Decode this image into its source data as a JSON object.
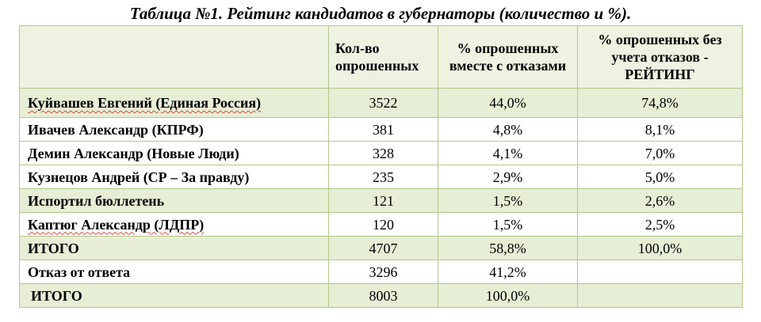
{
  "title": "Таблица №1. Рейтинг кандидатов в губернаторы (количество и %).",
  "headers": {
    "name": "",
    "count": "Кол-во опрошенных",
    "pct_with_refusals": "% опрошенных вместе с отказами",
    "pct_rating": "% опрошенных без учета отказов - РЕЙТИНГ"
  },
  "rows": [
    {
      "name": "Куйвашев Евгений (Единая Россия)",
      "count": "3522",
      "pct": "44,0%",
      "rating": "74,8%"
    },
    {
      "name": "Ивачев Александр (КПРФ)",
      "count": "381",
      "pct": "4,8%",
      "rating": "8,1%"
    },
    {
      "name": "Демин Александр (Новые Люди)",
      "count": "328",
      "pct": "4,1%",
      "rating": "7,0%"
    },
    {
      "name": "Кузнецов Андрей (СР – За правду)",
      "count": "235",
      "pct": "2,9%",
      "rating": "5,0%"
    },
    {
      "name": "Испортил бюллетень",
      "count": "121",
      "pct": "1,5%",
      "rating": "2,6%"
    },
    {
      "name": "Каптюг Александр (ЛДПР)",
      "count": "120",
      "pct": "1,5%",
      "rating": "2,5%"
    },
    {
      "name": "ИТОГО",
      "count": "4707",
      "pct": "58,8%",
      "rating": "100,0%"
    },
    {
      "name": "Отказ от ответа",
      "count": "3296",
      "pct": "41,2%",
      "rating": ""
    },
    {
      "name": "ИТОГО",
      "count": "8003",
      "pct": "100,0%",
      "rating": ""
    }
  ],
  "colors": {
    "band": "#e7eed6",
    "border": "#b3c787",
    "spellcheck": "#d94a3b"
  }
}
